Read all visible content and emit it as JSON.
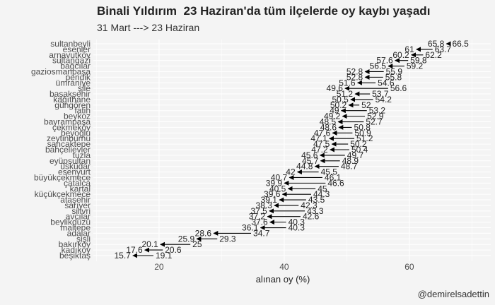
{
  "title": "Binali Yıldırım  23 Haziran'da tüm ilçelerde oy kaybı yaşadı",
  "subtitle": "31 Mart ---> 23 Haziran",
  "caption": "@demirelsadettin",
  "colors": {
    "background": "#f4f4f4",
    "grid": "#ffffff",
    "arrow": "#000000"
  },
  "chart_data": {
    "type": "dumbbell-arrow",
    "xlabel": "alınan oy (%)",
    "xlim": [
      9.5,
      73
    ],
    "xticks": [
      20,
      40,
      60
    ],
    "grid": true,
    "categories": [
      "sultanbeyli",
      "esenler",
      "arnavutköy",
      "sultangazi",
      "bağcılar",
      "gaziosmanpaşa",
      "pendik",
      "ümraniye",
      "şile",
      "başakşehir",
      "kağıthane",
      "güngören",
      "fatih",
      "beykoz",
      "bayrampaşa",
      "çekmeköy",
      "beyoğlu",
      "zeytinburnu",
      "sancaktepe",
      "bahçelievler",
      "tuzla",
      "eyüpsultan",
      "üsküdar",
      "esenyurt",
      "büyükçekmece",
      "çatalca",
      "kartal",
      "küçükçekmece",
      "ataşehir",
      "sarıyer",
      "silivri",
      "avcılar",
      "beylikdüzü",
      "maltepe",
      "adalar",
      "şişli",
      "bakırköy",
      "kadıköy",
      "beşiktaş"
    ],
    "series": [
      {
        "name": "31 Mart",
        "values": [
          66.5,
          63.7,
          62.2,
          59.8,
          59.2,
          55.9,
          55.8,
          54.6,
          56.6,
          53.7,
          54.2,
          52,
          53.2,
          52.9,
          52.7,
          50.8,
          50.9,
          51.2,
          50.2,
          50.4,
          49.7,
          48.9,
          48.7,
          45.5,
          46.1,
          46.6,
          45,
          44.3,
          43.5,
          42.3,
          43.3,
          42.6,
          40.3,
          40.3,
          34.7,
          29.3,
          25,
          20.6,
          19.1
        ]
      },
      {
        "name": "23 Haziran",
        "values": [
          65.8,
          61,
          60.2,
          57.6,
          56.5,
          52.8,
          52.8,
          51.6,
          49.6,
          51.2,
          50.5,
          50.2,
          49,
          49.2,
          48.5,
          48.6,
          47.6,
          47.1,
          47.5,
          47.2,
          45.6,
          45.7,
          44.8,
          42,
          40.7,
          39.9,
          40.5,
          39.6,
          39.1,
          38.3,
          37.5,
          37.2,
          37.6,
          36.1,
          28.6,
          25.9,
          20.1,
          17.6,
          15.7
        ]
      }
    ]
  }
}
